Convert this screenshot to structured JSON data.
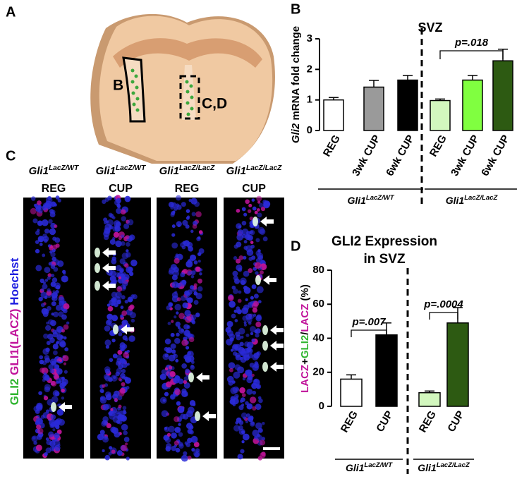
{
  "panel_labels": [
    "A",
    "B",
    "C",
    "D"
  ],
  "panel_a": {
    "region_labels": [
      "B",
      "C,D"
    ]
  },
  "panel_c": {
    "columns": [
      {
        "gene": "Gli1",
        "sup": "LacZ/WT",
        "condition": "REG"
      },
      {
        "gene": "Gli1",
        "sup": "LacZ/WT",
        "condition": "CUP"
      },
      {
        "gene": "Gli1",
        "sup": "LacZ/LacZ",
        "condition": "REG"
      },
      {
        "gene": "Gli1",
        "sup": "LacZ/LacZ",
        "condition": "CUP"
      }
    ],
    "stain": [
      {
        "text": "GLI2",
        "color": "#2fb52f"
      },
      {
        "text": "GLI1(LACZ)",
        "color": "#c0139a"
      },
      {
        "text": "Hoechst",
        "color": "#2020e0"
      }
    ]
  },
  "chart_data": [
    {
      "type": "bar",
      "title_lines": [
        "SVZ"
      ],
      "ylabel": [
        {
          "text": "Gli2",
          "italic": true,
          "color": "#000"
        },
        {
          "text": " mRNA fold change",
          "italic": false,
          "color": "#000"
        }
      ],
      "categories": [
        "REG",
        "3wk CUP",
        "6wk CUP",
        "REG",
        "3wk CUP",
        "6wk CUP"
      ],
      "values": [
        1.0,
        1.42,
        1.65,
        0.98,
        1.65,
        2.28
      ],
      "errors": [
        0.08,
        0.22,
        0.15,
        0.05,
        0.15,
        0.38
      ],
      "colors": [
        "#ffffff",
        "#9a9a9a",
        "#000000",
        "#d2f7be",
        "#80ff40",
        "#2d5a12"
      ],
      "groups": [
        {
          "gene": "Gli1",
          "sup": "LacZ/WT"
        },
        {
          "gene": "Gli1",
          "sup": "LacZ/LacZ"
        }
      ],
      "comparisons": [
        {
          "label": "p=.018"
        }
      ],
      "ylim": [
        0,
        3
      ],
      "yticks": [
        0,
        1,
        2,
        3
      ]
    },
    {
      "type": "bar",
      "title_lines": [
        "GLI2 Expression",
        "in SVZ"
      ],
      "ylabel": [
        {
          "text": "LACZ",
          "italic": false,
          "color": "#c0139a"
        },
        {
          "text": "+",
          "italic": false,
          "color": "#000"
        },
        {
          "text": "GLI2",
          "italic": false,
          "color": "#2fb52f"
        },
        {
          "text": "/",
          "italic": false,
          "color": "#000"
        },
        {
          "text": "LACZ",
          "italic": false,
          "color": "#c0139a"
        },
        {
          "text": " (%)",
          "italic": false,
          "color": "#000"
        }
      ],
      "categories": [
        "REG",
        "CUP",
        "REG",
        "CUP"
      ],
      "values": [
        16,
        42,
        8,
        49
      ],
      "errors": [
        2.5,
        7,
        1,
        9
      ],
      "colors": [
        "#ffffff",
        "#000000",
        "#d2f7be",
        "#2d5a12"
      ],
      "groups": [
        {
          "gene": "Gli1",
          "sup": "LacZ/WT"
        },
        {
          "gene": "Gli1",
          "sup": "LacZ/LacZ"
        }
      ],
      "comparisons": [
        {
          "label": "p=.007"
        },
        {
          "label": "p=.0004"
        }
      ],
      "ylim": [
        0,
        80
      ],
      "yticks": [
        0,
        20,
        40,
        60,
        80
      ]
    }
  ]
}
